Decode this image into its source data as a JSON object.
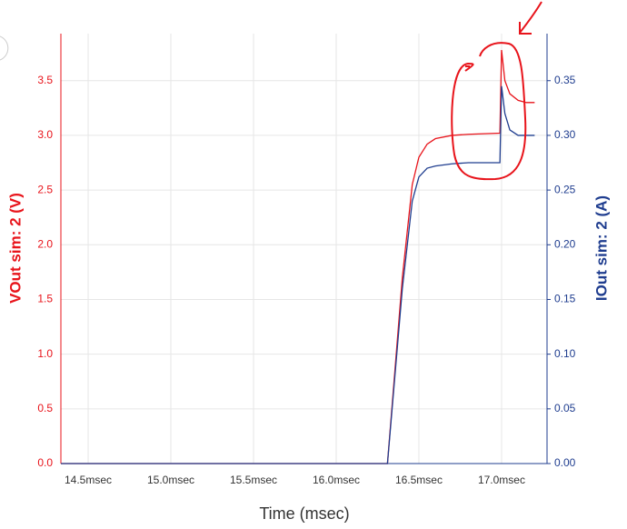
{
  "chart_data": {
    "type": "line",
    "xlabel": "Time (msec)",
    "ylabel": "VOut sim: 2 (V)",
    "y2label": "IOut sim: 2 (A)",
    "x": [
      14.335,
      16.31,
      16.4,
      16.46,
      16.5,
      16.55,
      16.6,
      16.7,
      16.8,
      16.99,
      17.0,
      17.02,
      17.05,
      17.1,
      17.15,
      17.2
    ],
    "series": [
      {
        "name": "VOut sim: 2",
        "color": "#e8141b",
        "values": [
          0,
          0,
          1.7,
          2.55,
          2.8,
          2.92,
          2.97,
          3.0,
          3.01,
          3.02,
          3.78,
          3.5,
          3.38,
          3.32,
          3.3,
          3.3
        ]
      },
      {
        "name": "IOut sim: 2",
        "color": "#1f3d8f",
        "axis": "y2",
        "values": [
          0,
          0,
          0.16,
          0.24,
          0.262,
          0.27,
          0.272,
          0.274,
          0.275,
          0.275,
          0.345,
          0.32,
          0.305,
          0.3,
          0.3,
          0.3
        ]
      }
    ],
    "xlim": [
      14.335,
      17.275
    ],
    "xticks": [
      {
        "value": 14.5,
        "label": "14.5msec"
      },
      {
        "value": 15.0,
        "label": "15.0msec"
      },
      {
        "value": 15.5,
        "label": "15.5msec"
      },
      {
        "value": 16.0,
        "label": "16.0msec"
      },
      {
        "value": 16.5,
        "label": "16.5msec"
      },
      {
        "value": 17.0,
        "label": "17.0msec"
      }
    ],
    "ylim": [
      0,
      3.93
    ],
    "yticks": [
      {
        "value": 0,
        "label": "0.0"
      },
      0.5,
      {
        "value": 1,
        "label": "1.0"
      },
      1.5,
      {
        "value": 2,
        "label": "2.0"
      },
      2.5,
      {
        "value": 3,
        "label": "3.0"
      },
      3.5
    ],
    "y2lim": [
      0,
      0.393
    ],
    "y2ticks": [
      {
        "value": 0,
        "label": "0.00"
      },
      0.05,
      {
        "value": 0.1,
        "label": "0.10"
      },
      0.15,
      {
        "value": 0.2,
        "label": "0.20"
      },
      0.25,
      {
        "value": 0.3,
        "label": "0.30"
      },
      0.35
    ],
    "grid": true
  }
}
